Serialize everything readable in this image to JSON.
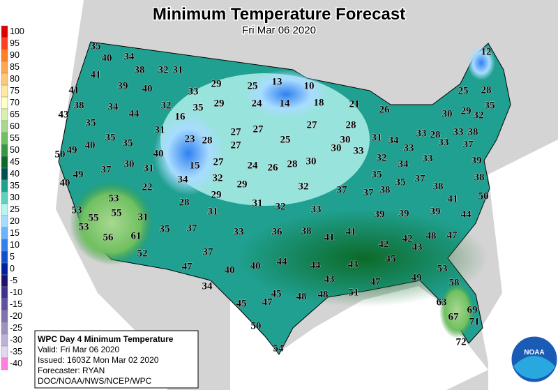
{
  "header": {
    "title": "Minimum Temperature Forecast",
    "subtitle": "Fri Mar 06 2020"
  },
  "legend": [
    {
      "value": 100,
      "color": "#e00000"
    },
    {
      "value": 95,
      "color": "#ff4020"
    },
    {
      "value": 90,
      "color": "#ff8020"
    },
    {
      "value": 85,
      "color": "#ffa850"
    },
    {
      "value": 80,
      "color": "#ffc878"
    },
    {
      "value": 75,
      "color": "#ffe8a0"
    },
    {
      "value": 70,
      "color": "#ffffc8"
    },
    {
      "value": 65,
      "color": "#d8f0b0"
    },
    {
      "value": 60,
      "color": "#a8d890"
    },
    {
      "value": 55,
      "color": "#70c060"
    },
    {
      "value": 50,
      "color": "#389840"
    },
    {
      "value": 45,
      "color": "#0c6a28"
    },
    {
      "value": 40,
      "color": "#005050"
    },
    {
      "value": 35,
      "color": "#20a090"
    },
    {
      "value": 30,
      "color": "#60d0c0"
    },
    {
      "value": 25,
      "color": "#b8f4f0"
    },
    {
      "value": 20,
      "color": "#a8dcff"
    },
    {
      "value": 15,
      "color": "#68b4ff"
    },
    {
      "value": 10,
      "color": "#3080f0"
    },
    {
      "value": 5,
      "color": "#1050d0"
    },
    {
      "value": 0,
      "color": "#0020a0"
    },
    {
      "value": -5,
      "color": "#201070"
    },
    {
      "value": -10,
      "color": "#403090"
    },
    {
      "value": -15,
      "color": "#6050a0"
    },
    {
      "value": -20,
      "color": "#8070b0"
    },
    {
      "value": -25,
      "color": "#a090c0"
    },
    {
      "value": -30,
      "color": "#c0b0d8"
    },
    {
      "value": -35,
      "color": "#e0d8f0"
    },
    {
      "value": -40,
      "color": "#ff80e0"
    }
  ],
  "map": {
    "labels": [
      35,
      40,
      34,
      38,
      32,
      31,
      41,
      39,
      40,
      33,
      29,
      25,
      13,
      10,
      12,
      25,
      28,
      41,
      38,
      34,
      44,
      32,
      35,
      29,
      24,
      14,
      18,
      21,
      26,
      30,
      29,
      32,
      35,
      43,
      35,
      16,
      27,
      28,
      31,
      27,
      27,
      25,
      30,
      31,
      34,
      33,
      28,
      33,
      33,
      38,
      35,
      35,
      23,
      28,
      27,
      33,
      37,
      50,
      49,
      40,
      40,
      30,
      33,
      32,
      34,
      33,
      39,
      27,
      15,
      24,
      26,
      28,
      30,
      49,
      37,
      30,
      31,
      32,
      34,
      35,
      35,
      37,
      38,
      40,
      22,
      29,
      32,
      37,
      37,
      38,
      38,
      29,
      53,
      28,
      31,
      32,
      33,
      41,
      50,
      53,
      55,
      55,
      31,
      31,
      39,
      39,
      39,
      44,
      53,
      35,
      37,
      33,
      36,
      38,
      41,
      41,
      56,
      61,
      42,
      42,
      43,
      48,
      47,
      52,
      37,
      45,
      47,
      40,
      40,
      44,
      44,
      43,
      53,
      43,
      47,
      49,
      34,
      51,
      58,
      45,
      47,
      45,
      48,
      48,
      63,
      69,
      67,
      71,
      50,
      72,
      54
    ]
  },
  "info": {
    "title": "WPC Day 4 Minimum Temperature",
    "valid": "Valid: Fri Mar 06 2020",
    "issued": "Issued: 1603Z Mon Mar 02 2020",
    "forecaster": "Forecaster: RYAN",
    "source": "DOC/NOAA/NWS/NCEP/WPC"
  },
  "logo": {
    "text": "NOAA"
  }
}
